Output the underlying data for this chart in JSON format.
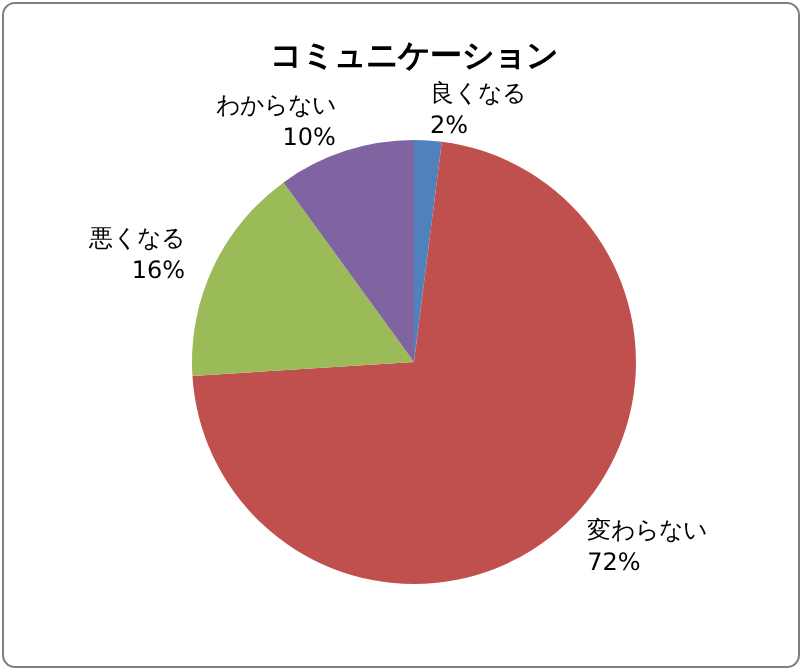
{
  "chart_data": {
    "type": "pie",
    "title": "コミュニケーション",
    "categories": [
      "良くなる",
      "変わらない",
      "悪くなる",
      "わからない"
    ],
    "values": [
      2,
      72,
      16,
      10
    ],
    "colors": [
      "#4f81bd",
      "#c0504d",
      "#9bbb59",
      "#8064a2"
    ],
    "value_labels": [
      "2%",
      "72%",
      "16%",
      "10%"
    ],
    "legend": false
  }
}
